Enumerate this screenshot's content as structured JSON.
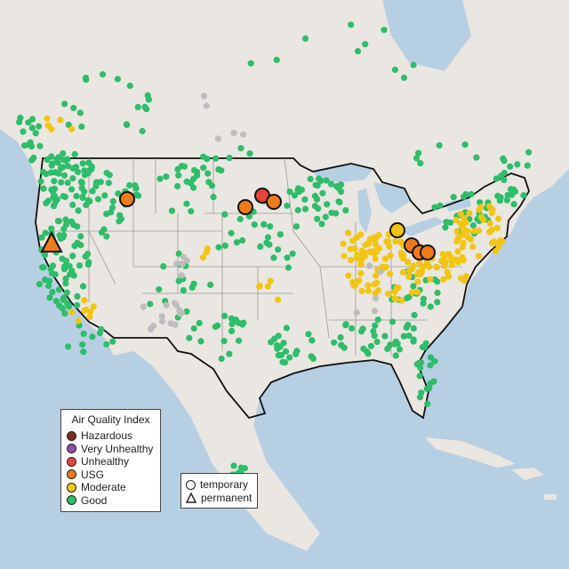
{
  "legend": {
    "title": "Air Quality Index",
    "categories": [
      {
        "label": "Hazardous",
        "color": "#7e2c1e"
      },
      {
        "label": "Very Unhealthy",
        "color": "#8f4fa8"
      },
      {
        "label": "Unhealthy",
        "color": "#e8443a"
      },
      {
        "label": "USG",
        "color": "#ef7a1a"
      },
      {
        "label": "Moderate",
        "color": "#f2c511"
      },
      {
        "label": "Good",
        "color": "#2ebd6b"
      }
    ],
    "shapes": {
      "temporary": "temporary",
      "permanent": "permanent"
    }
  },
  "colors": {
    "good": "#2ebd6b",
    "moderate": "#f2c511",
    "usg": "#ef7a1a",
    "unhealthy": "#e8443a",
    "no_data": "#bdbdbd",
    "land": "#eae6e1",
    "water": "#b7cfe3",
    "border": "#111111"
  },
  "large_markers": [
    {
      "category": "usg",
      "shape": "triangle",
      "location": "northern California"
    },
    {
      "category": "usg",
      "shape": "circle",
      "location": "Idaho"
    },
    {
      "category": "unhealthy",
      "shape": "circle",
      "location": "North Dakota"
    },
    {
      "category": "usg",
      "shape": "circle",
      "location": "South Dakota"
    },
    {
      "category": "usg",
      "shape": "circle",
      "location": "eastern South Dakota"
    },
    {
      "category": "moderate",
      "shape": "circle",
      "location": "northern Ohio"
    },
    {
      "category": "usg",
      "shape": "circle",
      "location": "central Ohio"
    },
    {
      "category": "usg",
      "shape": "circle",
      "location": "eastern Ohio"
    },
    {
      "category": "usg",
      "shape": "circle",
      "location": "Pittsburgh area"
    }
  ]
}
